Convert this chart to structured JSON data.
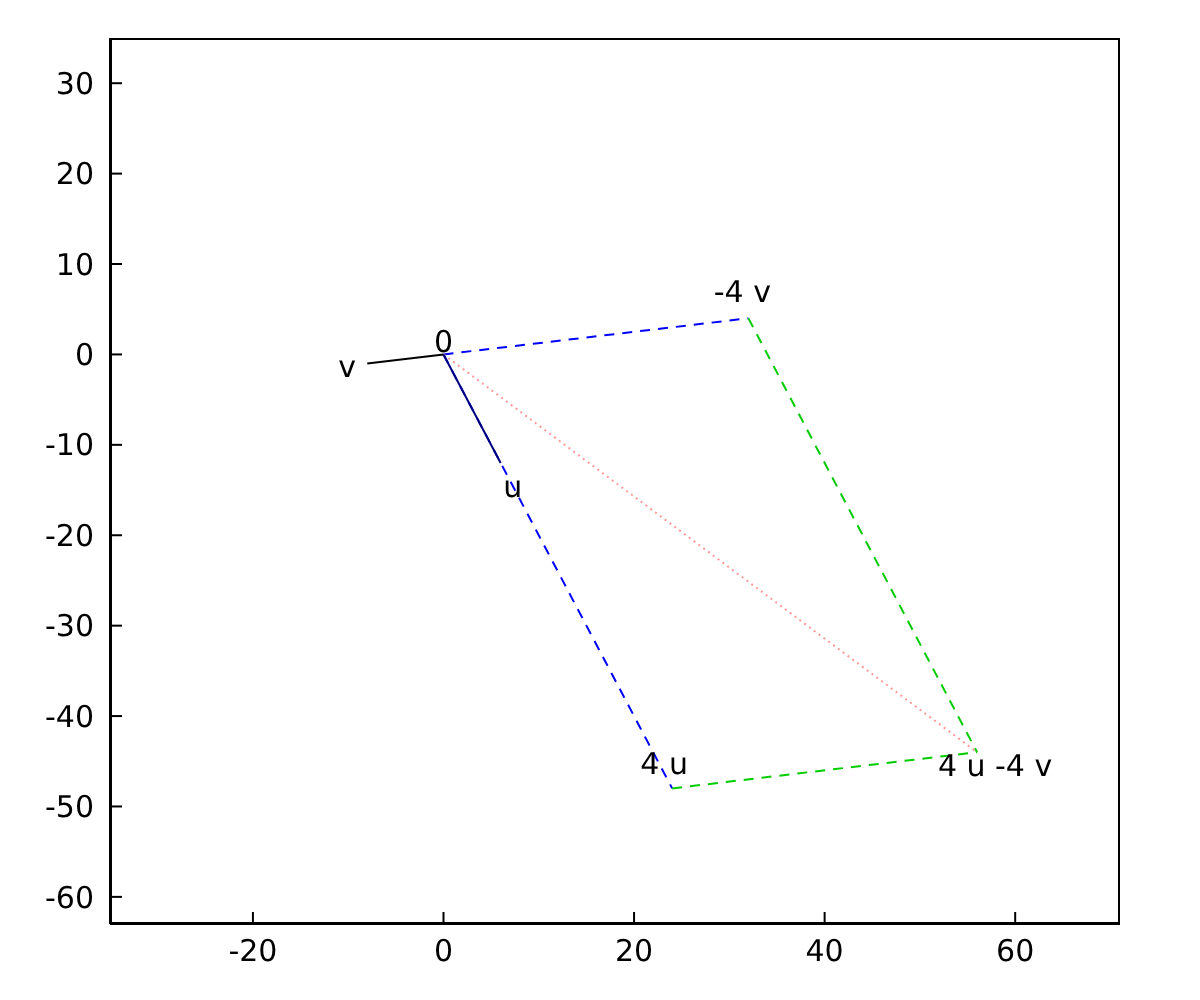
{
  "chart_data": {
    "type": "line",
    "xlim": [
      -35,
      71
    ],
    "ylim": [
      -63,
      35
    ],
    "xticks": [
      -20,
      0,
      20,
      40,
      60
    ],
    "yticks": [
      -60,
      -50,
      -40,
      -30,
      -20,
      -10,
      0,
      10,
      20,
      30
    ],
    "grid": false,
    "legend": false,
    "marker": "none",
    "series": [
      {
        "color": "#0000ff",
        "line_style": "dashed",
        "x": [
          0,
          24
        ],
        "values": [
          0,
          -48
        ]
      },
      {
        "color": "#0000ff",
        "line_style": "dashed",
        "x": [
          0,
          32
        ],
        "values": [
          0,
          4
        ]
      },
      {
        "color": "#00cc00",
        "line_style": "dashed",
        "x": [
          32,
          56
        ],
        "values": [
          4,
          -44
        ]
      },
      {
        "color": "#00cc00",
        "line_style": "dashed",
        "x": [
          24,
          56
        ],
        "values": [
          -48,
          -44
        ]
      },
      {
        "color": "#ff9999",
        "line_style": "dotted",
        "x": [
          0,
          56
        ],
        "values": [
          0,
          -44
        ]
      },
      {
        "color": "#000080",
        "line_style": "solid",
        "x": [
          0,
          6
        ],
        "values": [
          0,
          -12
        ]
      },
      {
        "color": "#000000",
        "line_style": "solid",
        "x": [
          0,
          -8
        ],
        "values": [
          0,
          -1
        ]
      }
    ],
    "annotations": [
      {
        "text": "0",
        "x": 0,
        "y": 0
      },
      {
        "text": "u",
        "x": 6,
        "y": -12
      },
      {
        "text": "v",
        "x": -8,
        "y": -1
      },
      {
        "text": "4 u",
        "x": 24,
        "y": -48
      },
      {
        "text": "-4 v",
        "x": 32,
        "y": 4
      },
      {
        "text": "4 u -4 v",
        "x": 56,
        "y": -44
      }
    ]
  }
}
